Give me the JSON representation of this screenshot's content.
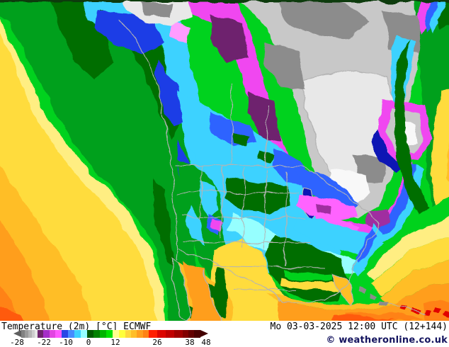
{
  "legend": {
    "title": "Temperature (2m) [°C] ECMWF",
    "datetime": "Mo 03-03-2025 12:00 UTC (12+144)",
    "copyright": "© weatheronline.co.uk",
    "scale": {
      "ticks": [
        -28,
        -22,
        -10,
        0,
        12,
        26,
        38,
        48
      ],
      "left_arrow": "#5f5f5f",
      "right_arrow": "#420000",
      "segments": [
        {
          "c": "#828282",
          "w": 5
        },
        {
          "c": "#9b9b9b",
          "w": 5
        },
        {
          "c": "#b4b4b4",
          "w": 5
        },
        {
          "c": "#cdcdcd",
          "w": 4
        },
        {
          "c": "#e6e6e6",
          "w": 4
        },
        {
          "c": "#6e236e",
          "w": 8
        },
        {
          "c": "#a52dc8",
          "w": 9
        },
        {
          "c": "#e146e1",
          "w": 8
        },
        {
          "c": "#ff5aff",
          "w": 9
        },
        {
          "c": "#2846e6",
          "w": 9
        },
        {
          "c": "#468cff",
          "w": 9
        },
        {
          "c": "#3cd2ff",
          "w": 9
        },
        {
          "c": "#96ffff",
          "w": 9
        },
        {
          "c": "#005a00",
          "w": 9
        },
        {
          "c": "#008200",
          "w": 9
        },
        {
          "c": "#00b400",
          "w": 9
        },
        {
          "c": "#00e100",
          "w": 9
        },
        {
          "c": "#ffff8c",
          "w": 9
        },
        {
          "c": "#ffff3c",
          "w": 9
        },
        {
          "c": "#ffd73c",
          "w": 8
        },
        {
          "c": "#ffbe28",
          "w": 8
        },
        {
          "c": "#ff9e1e",
          "w": 9
        },
        {
          "c": "#ff8214",
          "w": 8
        },
        {
          "c": "#ff1e00",
          "w": 12
        },
        {
          "c": "#dc0500",
          "w": 12
        },
        {
          "c": "#c00000",
          "w": 12
        },
        {
          "c": "#a00000",
          "w": 12
        },
        {
          "c": "#820000",
          "w": 8
        },
        {
          "c": "#640000",
          "w": 8
        },
        {
          "c": "#4b0000",
          "w": 9
        }
      ],
      "labels": [
        {
          "t": "-28",
          "o": 5
        },
        {
          "t": "-22",
          "o": 43
        },
        {
          "t": "-10",
          "o": 74
        },
        {
          "t": "0",
          "o": 106
        },
        {
          "t": "12",
          "o": 144
        },
        {
          "t": "26",
          "o": 203
        },
        {
          "t": "38",
          "o": 249
        },
        {
          "t": "48",
          "o": 272
        }
      ]
    }
  },
  "map": {
    "palette": {
      "gB": "#00d21e",
      "gM": "#00a01e",
      "gD": "#006e00",
      "yP": "#ffee82",
      "ye": "#ffdc3c",
      "go": "#ffbe28",
      "or": "#ff9e1e",
      "oD": "#ff8214",
      "oR": "#ff5a0a",
      "re": "#e10000",
      "cy": "#3cd2ff",
      "cP": "#96ffff",
      "bl": "#2d64ff",
      "bR": "#1e3ce6",
      "bD": "#0a14b4",
      "ma": "#f046f0",
      "mB": "#ff64ff",
      "pk": "#ff9cff",
      "pu": "#a02da0",
      "pD": "#6e236e",
      "w": "#f8f8f8",
      "gl": "#e8e8e8",
      "gr": "#c8c8c8",
      "gm": "#a0a0a0",
      "gd": "#8c8c8c",
      "bo": "#b4b4b4",
      "tp": "#0c3a10"
    },
    "regions": [
      {
        "n": "pacific-coastal",
        "c": "gM",
        "p": "-8,-8 186,-8 221,40 246,100 256,160 266,230 273,310 277,400 277,460 239,460 235,400 213,335 167,278 113,215 73,150 39,82 13,30 -8,18"
      },
      {
        "n": "alaska-gulf",
        "c": "gD",
        "p": "70,-8 170,-8 189,20 173,48 151,50 159,88 133,112 101,82 85,42"
      },
      {
        "n": "bc-coast-strip",
        "c": "gD",
        "p": "168,-2 206,28 229,72 243,122 251,178 241,198 223,150 201,100 177,52 157,22"
      },
      {
        "n": "alaska-cyan-sliver",
        "c": "cy",
        "p": "116,-6 143,-6 141,38 123,30"
      },
      {
        "n": "pacific-pale-yellow",
        "c": "yP",
        "p": "-8,10 37,104 69,170 127,242 181,300 216,358 231,415 234,460 -8,460"
      },
      {
        "n": "pacific-yellow",
        "c": "ye",
        "p": "-8,24 28,114 58,184 115,254 168,311 203,367 218,420 222,460 -8,460"
      },
      {
        "n": "pacific-gold",
        "c": "go",
        "p": "-8,224 30,279 75,344 115,404 131,460 -8,460"
      },
      {
        "n": "pacific-orange",
        "c": "or",
        "p": "-8,299 30,359 60,419 71,460 -8,460"
      },
      {
        "n": "pacific-deep-orange",
        "c": "oD",
        "p": "-8,394 25,439 29,460 -8,460"
      },
      {
        "n": "pacific-corner-hot",
        "c": "oR",
        "p": "-8,430 31,444 39,460 -8,460"
      },
      {
        "n": "nw-cyan-band",
        "c": "cy",
        "p": "130,-8 241,-8 260,45 274,110 290,180 307,255 316,322 313,335 291,332 274,265 260,195 245,125 227,65 201,28 159,22 135,12"
      },
      {
        "n": "nw-blue-1",
        "c": "bR",
        "p": "138,16 217,24 232,60 201,76 161,60 134,40"
      },
      {
        "n": "nw-blue-2",
        "c": "bR",
        "p": "224,84 251,120 262,170 242,181 226,140 219,104"
      },
      {
        "n": "nw-blue-3",
        "c": "bR",
        "p": "249,198 271,240 282,292 263,286 251,240"
      },
      {
        "n": "nw-magenta-band",
        "c": "ma",
        "p": "241,-8 333,-8 354,50 374,120 397,195 420,255 434,300 417,306 397,266 374,206 352,140 330,76 302,36 264,16"
      },
      {
        "n": "nw-purple-1",
        "c": "pD",
        "p": "297,20 342,33 350,80 319,89 296,55"
      },
      {
        "n": "nw-purple-2",
        "c": "pD",
        "p": "352,128 387,144 397,200 369,196 350,160"
      },
      {
        "n": "nw-pink",
        "c": "pk",
        "p": "243,28 269,40 263,62 241,52"
      },
      {
        "n": "arctic-coast-lobe",
        "c": "gl",
        "p": "170,-6 265,-6 270,22 241,36 205,31 180,16"
      },
      {
        "n": "arctic-coast-dark",
        "c": "gd",
        "p": "198,2 243,6 239,24 206,22"
      },
      {
        "n": "gray-cold-core",
        "c": "gr",
        "p": "330,-8 604,-8 600,40 590,90 580,135 570,180 561,215 550,255 534,292 507,309 477,301 454,273 440,236 430,190 417,140 400,85 377,40 353,14"
      },
      {
        "n": "atlantic-green",
        "c": "gM",
        "p": "584,-8 642,-8 642,300 612,292 602,250 602,190 594,120 588,56"
      },
      {
        "n": "hudson-bay",
        "c": "gl",
        "s": 1,
        "p": "426,114 491,99 547,110 560,160 550,215 522,256 490,263 463,241 446,195 431,155"
      },
      {
        "n": "arctic-islands-1",
        "c": "gd",
        "p": "394,2 471,-6 522,29 492,56 431,46 398,25"
      },
      {
        "n": "arctic-islands-2",
        "c": "gd",
        "p": "540,14 597,24 590,75 550,70"
      },
      {
        "n": "west-of-bay-dark",
        "c": "gd",
        "p": "375,59 422,70 430,126 396,121 372,90"
      },
      {
        "n": "se-of-bay-dark",
        "c": "gd",
        "p": "498,217 544,224 540,258 505,256"
      },
      {
        "n": "labrador-ring",
        "c": "ma",
        "p": "540,140 600,148 610,198 590,228 554,224 534,186"
      },
      {
        "n": "labrador-core",
        "c": "gr",
        "p": "552,152 592,160 598,196 584,218 558,214 546,184"
      },
      {
        "n": "labrador-white",
        "c": "w",
        "p": "560,168 586,175 589,200 568,205"
      },
      {
        "n": "labrador-blue",
        "c": "bD",
        "p": "534,180 548,214 570,234 558,242 536,228 526,200"
      },
      {
        "n": "labrador-channel",
        "c": "cy",
        "p": "558,52 586,58 578,112 568,152 554,142 552,94"
      },
      {
        "n": "quebec-white-core",
        "c": "w",
        "p": "466,238 514,245 524,272 501,291 472,283 462,260"
      },
      {
        "n": "stlawrence-magenta",
        "c": "ma",
        "p": "428,294 470,309 512,317 544,306 560,282 570,240 582,230 576,272 556,316 522,336 470,331 431,319"
      },
      {
        "n": "stlawrence-bright",
        "c": "mB",
        "p": "438,299 487,313 507,321 501,333 459,325 430,312"
      },
      {
        "n": "ne-purple",
        "c": "pu",
        "p": "520,300 549,296 556,312 534,326 515,315"
      },
      {
        "n": "east-blue-band",
        "c": "bl",
        "p": "588,234 576,286 552,322 518,342 468,338 424,326 400,312 406,302 432,316 470,328 520,332 548,312 566,272 576,232"
      },
      {
        "n": "east-cyan-band",
        "c": "cy",
        "p": "598,238 586,292 560,330 524,352 468,348 420,336 394,322 400,312 424,326 468,338 518,342 552,322 576,286 588,234"
      },
      {
        "n": "central-cyan-wedge",
        "c": "cy",
        "p": "250,128 292,150 342,176 392,206 424,238 434,275 446,310 470,330 480,355 470,380 430,392 382,388 338,370 307,332 293,288 276,225 260,180"
      },
      {
        "n": "prairie-blue-1",
        "c": "bl",
        "p": "296,158 352,177 363,202 330,206 297,188"
      },
      {
        "n": "prairie-blue-2",
        "c": "bl",
        "p": "386,210 426,227 433,262 405,258 384,234"
      },
      {
        "n": "lakes-blue",
        "c": "bl",
        "p": "416,238 462,248 492,270 506,290 494,302 462,288 430,268"
      },
      {
        "n": "lake-michigan",
        "c": "bD",
        "s": 1,
        "p": "430,266 441,267 446,300 437,309 427,295"
      },
      {
        "n": "lakes-magenta",
        "c": "mB",
        "p": "424,276 470,282 501,291 506,306 470,313 434,301 419,289"
      },
      {
        "n": "lakes-purple",
        "c": "pu",
        "p": "444,288 468,294 466,306 446,300"
      },
      {
        "n": "east-cyan-south",
        "c": "cy",
        "p": "420,300 470,316 520,331 546,346 531,361 490,356 445,341 414,326"
      },
      {
        "n": "ohio-pale-cyan",
        "c": "cP",
        "p": "378,330 430,346 480,361 521,373 505,386 459,379 414,366 376,352"
      },
      {
        "n": "midwest-pale-cyan",
        "c": "cP",
        "p": "330,300 370,318 400,338 390,356 352,344 322,322"
      },
      {
        "n": "plains-dark-green",
        "c": "gD",
        "p": "320,250 372,259 406,263 412,290 381,301 341,296 316,280"
      },
      {
        "n": "prairie-green-1",
        "c": "gD",
        "p": "328,188 352,194 348,207 330,202"
      },
      {
        "n": "prairie-green-2",
        "c": "gD",
        "p": "368,214 386,220 382,230 366,225"
      },
      {
        "n": "west-interior-green",
        "c": "gM",
        "p": "250,226 291,241 311,281 317,331 322,381 302,401 281,371 268,315 257,270"
      },
      {
        "n": "rockies-cyan-1",
        "c": "cy",
        "p": "283,254 302,266 309,296 294,306 280,278"
      },
      {
        "n": "rockies-blue",
        "c": "bl",
        "p": "294,300 312,312 309,330 293,322"
      },
      {
        "n": "rockies-cyan-2",
        "c": "cy",
        "p": "268,292 283,310 288,345 272,336 263,312"
      },
      {
        "n": "colorado-magenta",
        "c": "ma",
        "p": "299,308 315,314 313,326 298,320"
      },
      {
        "n": "west-coast-range",
        "c": "gD",
        "p": "216,252 232,268 238,310 243,352 252,382 236,372 226,332 216,292"
      },
      {
        "n": "southeast-green",
        "c": "gD",
        "p": "388,332 440,346 480,366 492,396 478,424 445,428 408,413 382,390 374,360"
      },
      {
        "n": "southeast-green-mid",
        "c": "gM",
        "p": "380,396 410,420 448,434 478,428 488,436 450,446 408,430 378,410"
      },
      {
        "n": "southeast-green-bright",
        "c": "gB",
        "p": "400,380 440,388 470,386 470,394 436,398 400,390"
      },
      {
        "n": "texas-yellow",
        "c": "ye",
        "p": "300,352 342,338 370,354 381,390 402,422 430,442 422,460 308,460 296,408"
      },
      {
        "n": "gulf-coast-yellow",
        "c": "ye",
        "p": "395,392 440,400 470,396 486,402 480,412 440,410 398,404"
      },
      {
        "n": "mexico-gold",
        "c": "go",
        "p": "250,370 293,390 319,412 331,436 323,460 263,460 253,420"
      },
      {
        "n": "sierra-madre",
        "c": "gD",
        "p": "306,378 318,380 322,420 316,448 306,445 300,410"
      },
      {
        "n": "mexico-green-1",
        "c": "gD",
        "p": "292,398 312,408 308,422 290,414"
      },
      {
        "n": "mexico-green-2",
        "c": "gD",
        "p": "262,430 280,438 276,450 260,444"
      },
      {
        "n": "gulf-of-california",
        "c": "or",
        "p": "258,368 288,380 296,412 306,440 312,455 266,455 272,430 264,405"
      },
      {
        "n": "baja",
        "c": "gM",
        "s": 1,
        "p": "244,366 252,372 258,392 264,418 268,443 262,452 254,448 250,416 245,388"
      },
      {
        "n": "gulf-of-mexico",
        "c": "or",
        "p": "392,424 450,436 502,439 562,431 612,421 642,415 642,460 396,460"
      },
      {
        "n": "gulf-gold-edge",
        "c": "go",
        "p": "378,414 440,428 500,431 560,423 612,412 642,404 642,415 612,421 562,431 502,439 450,436 392,424"
      },
      {
        "n": "gulf-deep-1",
        "c": "oD",
        "p": "486,444 562,443 598,450 540,456 488,452"
      },
      {
        "n": "gulf-deep-2",
        "c": "oD",
        "p": "598,428 642,424 642,460 600,452"
      },
      {
        "n": "gulf-bottom-hot",
        "c": "oR",
        "p": "470,446 520,448 560,452 500,456 468,452"
      },
      {
        "n": "florida",
        "c": "go",
        "s": 1,
        "p": "470,385 488,392 497,408 500,425 494,432 484,415 474,398"
      },
      {
        "n": "ne-magenta-sliver",
        "c": "ma",
        "p": "600,-6 612,-6 606,30 596,50 588,20"
      },
      {
        "n": "ne-blue-sliver",
        "c": "bl",
        "p": "612,-6 622,-6 616,28 604,44 600,30 606,14"
      },
      {
        "n": "ne-cyan-sliver",
        "c": "cy",
        "p": "622,-6 631,-6 627,24 613,44 608,34 616,16"
      },
      {
        "n": "greenland-corner",
        "c": "gD",
        "p": "631,-6 642,-6 642,30 623,40 618,28 627,10"
      },
      {
        "n": "gulf-stream-edge",
        "c": "gD",
        "p": "578,56 570,128 574,200 584,252 606,292 634,308 634,332 602,318 576,278 560,220 556,150 560,92"
      },
      {
        "n": "atl-edge-yellow",
        "c": "ye",
        "p": "624,128 642,122 642,300 616,294 608,248 612,190"
      },
      {
        "n": "atl-edge-gold",
        "c": "go",
        "p": "634,200 642,196 642,262 630,252"
      },
      {
        "n": "atl-bright-green-band",
        "c": "gB",
        "p": "642,272 642,302 568,336 516,384 508,376 560,326"
      },
      {
        "n": "atl-pale-yellow-band",
        "c": "yP",
        "p": "642,302 642,332 578,354 528,396 516,386 568,336"
      },
      {
        "n": "atl-yellow-band",
        "c": "ye",
        "p": "642,332 642,364 584,382 540,416 524,400 578,354"
      },
      {
        "n": "atl-gold-band",
        "c": "go",
        "p": "642,364 642,398 592,408 550,432 538,418 584,382"
      },
      {
        "n": "atl-orange-band",
        "c": "or",
        "p": "642,398 642,424 614,422 564,432 547,430 550,432 592,408"
      },
      {
        "n": "carolinas-cyan",
        "c": "cy",
        "p": "527,314 540,330 519,370 504,390 496,380 514,345"
      },
      {
        "n": "carolinas-blue",
        "c": "bl",
        "p": "524,322 532,333 516,362 506,372 502,364 516,340"
      },
      {
        "n": "bahamas-1",
        "c": "gd",
        "p": "508,406 518,409 515,415 506,412"
      },
      {
        "n": "bahamas-2",
        "c": "gd",
        "p": "524,414 533,417 530,423 522,420"
      },
      {
        "n": "bahamas-3",
        "c": "gd",
        "p": "538,424 547,427 544,433 536,430"
      },
      {
        "n": "island-hot-1",
        "c": "re",
        "p": "566,430 576,433 573,439 564,436"
      },
      {
        "n": "island-hot-2",
        "c": "re",
        "p": "584,434 594,437 591,443 582,440"
      },
      {
        "n": "island-hot-3",
        "c": "re",
        "p": "602,438 610,440 607,446 599,443"
      },
      {
        "n": "island-hot-4",
        "c": "re",
        "p": "616,436 624,438 621,444 613,441"
      },
      {
        "n": "island-hot-5",
        "c": "re",
        "p": "628,441 636,443 633,449 626,446"
      },
      {
        "n": "map-top-edge",
        "c": "tp",
        "p": "-8,-4 642,-4 642,3 -8,3"
      }
    ],
    "borders": [
      {
        "n": "pacific-coast",
        "p": "168,28 196,62 216,102 229,152 237,202 243,252 247,302 252,352 250,368"
      },
      {
        "n": "us-canada",
        "p": "247,233 300,233 360,234 424,235 447,247 468,261 489,276 506,291 519,300"
      },
      {
        "n": "us-mexico",
        "p": "252,354 282,362 312,377 342,391 360,399 376,406 388,416 394,425"
      },
      {
        "n": "east-coast",
        "p": "519,300 536,316 529,331 516,346 509,361 499,376 493,391 489,406"
      },
      {
        "n": "gulf-coast",
        "p": "489,406 478,414 458,424 438,427 418,429 398,427 392,420"
      },
      {
        "n": "mex-west-coast",
        "p": "287,382 295,410 305,438 312,452"
      },
      {
        "n": "cuba",
        "p": "545,429 566,432 586,437 601,443"
      },
      {
        "n": "state-v1",
        "p": "286,233 282,310"
      },
      {
        "n": "state-v2",
        "p": "316,233 312,334"
      },
      {
        "n": "state-v3",
        "p": "346,236 342,348"
      },
      {
        "n": "state-v4",
        "p": "376,238 372,362"
      },
      {
        "n": "state-v5",
        "p": "406,241 402,374"
      },
      {
        "n": "state-h1",
        "p": "252,271 424,273"
      },
      {
        "n": "state-h2",
        "p": "256,306 430,309"
      },
      {
        "n": "state-h3",
        "p": "258,341 438,343"
      },
      {
        "n": "state-h4",
        "p": "300,376 458,379"
      },
      {
        "n": "state-h5",
        "p": "330,408 420,411"
      },
      {
        "n": "province-1",
        "p": "330,118 326,232"
      },
      {
        "n": "province-2",
        "p": "378,150 374,234"
      }
    ]
  }
}
